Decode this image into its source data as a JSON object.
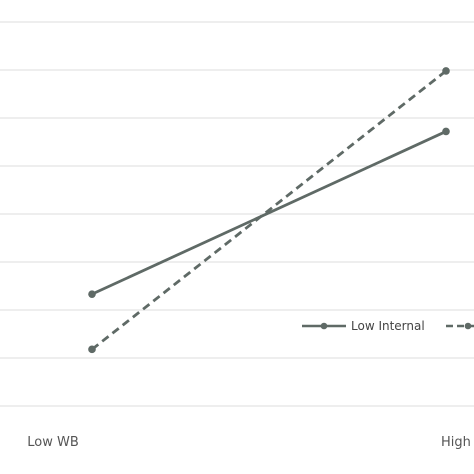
{
  "chart_data": {
    "type": "line",
    "categories": [
      "Low WB",
      "High"
    ],
    "y_range": [
      0,
      8
    ],
    "gridlines": true,
    "legend_placement": "right",
    "series": [
      {
        "name": "Low Internal",
        "values": [
          2.33,
          5.72
        ],
        "style": "solid",
        "color": "#5f6a66"
      },
      {
        "name": "",
        "values": [
          1.18,
          6.98
        ],
        "style": "dashed",
        "color": "#5f6a66"
      }
    ]
  }
}
